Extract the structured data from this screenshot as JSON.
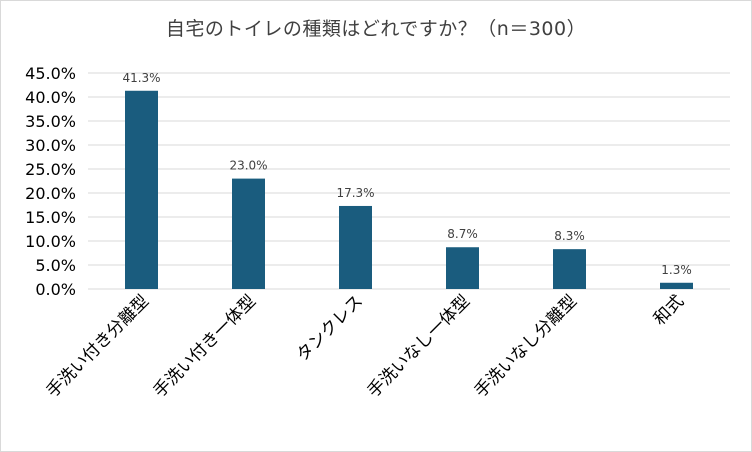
{
  "chart_data": {
    "type": "bar",
    "title": "自宅のトイレの種類はどれですか？（n＝300）",
    "categories": [
      "手洗い付き分離型",
      "手洗い付き一体型",
      "タンクレス",
      "手洗いなし一体型",
      "手洗いなし分離型",
      "和式"
    ],
    "values": [
      41.3,
      23.0,
      17.3,
      8.7,
      8.3,
      1.3
    ],
    "data_labels": [
      "41.3%",
      "23.0%",
      "17.3%",
      "8.7%",
      "8.3%",
      "1.3%"
    ],
    "ylim": [
      0,
      45
    ],
    "yticks": [
      0,
      5,
      10,
      15,
      20,
      25,
      30,
      35,
      40,
      45
    ],
    "ytick_labels": [
      "0.0%",
      "5.0%",
      "10.0%",
      "15.0%",
      "20.0%",
      "25.0%",
      "30.0%",
      "35.0%",
      "40.0%",
      "45.0%"
    ],
    "xlabel": "",
    "ylabel": "",
    "grid": true,
    "legend": false,
    "bar_color": "#1a5c7e",
    "grid_color": "#d9d9d9"
  }
}
